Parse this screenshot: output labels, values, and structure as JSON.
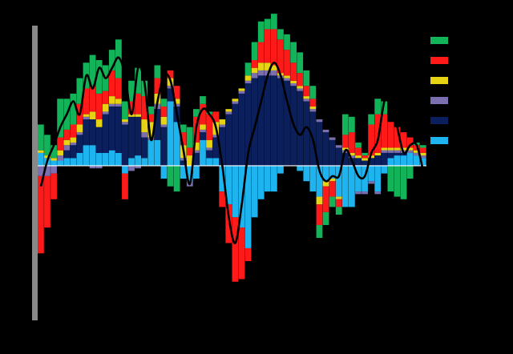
{
  "chart_data": {
    "type": "bar",
    "stacked": true,
    "stack_mode": "diverging",
    "overlay": "line",
    "title": "",
    "xlabel": "",
    "ylabel": "",
    "x_count": 60,
    "ylim": [
      -6,
      5.5
    ],
    "grid": false,
    "legend_position": "right",
    "background": "#000000",
    "axis_color": "#888888",
    "line_color": "#000000",
    "series": [
      {
        "key": "light_blue",
        "color": "#1eb4ef",
        "values": [
          0.5,
          0.3,
          0.2,
          0.2,
          0.3,
          0.3,
          0.5,
          0.8,
          0.8,
          0.5,
          0.5,
          0.6,
          0.5,
          -0.3,
          0.3,
          0.4,
          0.3,
          1.0,
          1.0,
          -0.5,
          2.5,
          1.7,
          -0.5,
          -0.6,
          -0.5,
          1.0,
          0.3,
          0.3,
          -1.0,
          -1.5,
          -2.0,
          -2.4,
          -3.2,
          -2.0,
          -1.3,
          -1.0,
          -1.0,
          -0.3,
          0,
          0,
          -0.2,
          -0.6,
          -1.0,
          -1.2,
          -0.6,
          -0.5,
          -1.2,
          -1.6,
          -1.6,
          -1.0,
          -1.0,
          -0.6,
          -1.0,
          -0.3,
          0.3,
          0.4,
          0.4,
          0.5,
          0.4,
          0.3
        ]
      },
      {
        "key": "navy",
        "color": "#0a1f5c",
        "values": [
          0,
          0,
          0,
          0,
          0.3,
          0.5,
          0.7,
          1.0,
          1.0,
          1.0,
          1.5,
          1.7,
          1.8,
          1.6,
          1.6,
          1.5,
          0.8,
          0,
          1.2,
          1.5,
          0.5,
          0.6,
          0.2,
          0,
          0.5,
          0.3,
          0.3,
          0.8,
          1.5,
          2.0,
          2.4,
          2.8,
          3.2,
          3.4,
          3.5,
          3.5,
          3.5,
          3.4,
          3.3,
          3.1,
          2.9,
          2.5,
          2.1,
          1.7,
          1.3,
          1.0,
          0.7,
          0.5,
          0.3,
          0.3,
          0.2,
          0.3,
          0.4,
          0.5,
          0.2,
          0.1,
          0.1,
          0,
          0,
          0
        ]
      },
      {
        "key": "purple",
        "color": "#7c6fb0",
        "values": [
          -0.4,
          -0.4,
          -0.3,
          0.2,
          0.2,
          0.1,
          0.1,
          0.1,
          -0.1,
          -0.1,
          0.1,
          0.1,
          0.1,
          0.1,
          -0.2,
          -0.1,
          0.2,
          0.1,
          0.2,
          0.1,
          0.1,
          0.1,
          0.1,
          -0.2,
          0.1,
          0.1,
          0.1,
          0.1,
          0.1,
          0.1,
          0.1,
          0.1,
          0.1,
          0.2,
          0.2,
          0.2,
          0.2,
          0.1,
          0.1,
          0.1,
          0.1,
          0.1,
          0.1,
          0.1,
          0.1,
          0.1,
          0.1,
          0.1,
          0.1,
          -0.1,
          -0.1,
          -0.1,
          -0.1,
          0.1,
          0.1,
          0.1,
          0.1,
          0.1,
          0.1,
          0.1
        ]
      },
      {
        "key": "yellow",
        "color": "#e5d314",
        "values": [
          0.1,
          0.1,
          0.1,
          0.2,
          0.2,
          0.2,
          0.3,
          0.1,
          0.3,
          0.3,
          0.3,
          0.3,
          0.2,
          0.1,
          0.1,
          0.1,
          0.5,
          0.6,
          0.4,
          0.3,
          0.3,
          0.2,
          0.5,
          0.4,
          0.3,
          0.2,
          0.3,
          0.5,
          0.2,
          0.1,
          0.1,
          0.1,
          0.2,
          0.2,
          0.3,
          0.3,
          0.2,
          0.1,
          0.1,
          0.1,
          0.1,
          0.1,
          0.1,
          -0.3,
          -0.2,
          -0.1,
          -0.1,
          0.1,
          0.1,
          0.1,
          0.1,
          0.1,
          0.1,
          0.1,
          0.1,
          0.1,
          0.1,
          0.1,
          0.1,
          0.1
        ]
      },
      {
        "key": "red",
        "color": "#ff1a1a",
        "values": [
          -3.0,
          -2.0,
          -1.0,
          0.5,
          0.4,
          0.5,
          0.8,
          1.0,
          1.0,
          1.0,
          0.5,
          1.0,
          0.8,
          -1.0,
          0.5,
          0.8,
          0.9,
          0.3,
          0.6,
          0.4,
          0.3,
          0.5,
          0.5,
          0.3,
          1.0,
          0.8,
          1.0,
          0.4,
          -0.6,
          -1.5,
          -2.5,
          -2.0,
          -0.5,
          0.3,
          0.8,
          1.3,
          1.4,
          1.3,
          1.0,
          0.7,
          0.5,
          0.4,
          0.3,
          -0.8,
          -1.0,
          -0.6,
          -0.3,
          0.5,
          0.8,
          0.3,
          0.1,
          1.2,
          1.5,
          1.3,
          1.0,
          0.8,
          0.6,
          0.4,
          0.2,
          0.2
        ]
      },
      {
        "key": "green",
        "color": "#13b35a",
        "values": [
          1.0,
          0.8,
          0.5,
          1.5,
          1.2,
          1.2,
          1.0,
          1.0,
          1.2,
          1.3,
          1.0,
          0.8,
          1.5,
          0.7,
          0.8,
          1.0,
          0.6,
          0.3,
          0.5,
          0.3,
          -0.8,
          -1.0,
          0.3,
          0.8,
          0.3,
          0.3,
          0.1,
          0,
          0,
          0,
          0,
          0,
          0.5,
          0.7,
          0.8,
          0.4,
          0.6,
          0.4,
          0.6,
          0.8,
          0.8,
          0.6,
          0.5,
          -0.5,
          -0.5,
          -0.4,
          -0.3,
          0.8,
          0.6,
          0.2,
          0.1,
          0.4,
          0.6,
          0.5,
          -1.0,
          -1.2,
          -1.3,
          -0.5,
          0.1,
          0.1
        ]
      }
    ],
    "line": {
      "values": [
        -0.8,
        0.2,
        0.8,
        1.5,
        2.0,
        2.5,
        2.0,
        3.5,
        3.0,
        3.8,
        3.4,
        3.8,
        4.2,
        3.5,
        2.0,
        3.8,
        3.2,
        1.0,
        2.5,
        3.5,
        3.3,
        2.0,
        0.6,
        -0.7,
        1.5,
        2.2,
        2.0,
        1.5,
        0,
        -2.0,
        -3.0,
        -1.5,
        0.5,
        1.5,
        2.5,
        3.5,
        4.0,
        3.5,
        2.5,
        1.6,
        1.2,
        1.5,
        1.0,
        -0.2,
        -0.6,
        -0.4,
        -0.4,
        0.6,
        0.2,
        -0.4,
        -0.4,
        0.5,
        1.0,
        2.5,
        2.8,
        1.5,
        0.5,
        0.8,
        0.8,
        -0.2
      ]
    }
  }
}
